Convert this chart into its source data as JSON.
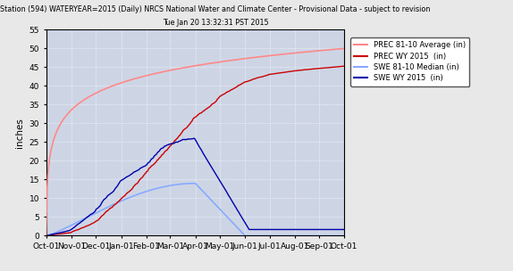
{
  "title_line1": "Station (594) WATERYEAR=2015 (Daily) NRCS National Water and Climate Center - Provisional Data - subject to revision",
  "title_line2": "Tue Jan 20 13:32:31 PST 2015",
  "ylabel": "inches",
  "plot_bg_color": "#cdd5e5",
  "fig_bg_color": "#e8e8e8",
  "months": [
    "Oct-01",
    "Nov-01",
    "Dec-01",
    "Jan-01",
    "Feb-01",
    "Mar-01",
    "Apr-01",
    "May-01",
    "Jun-01",
    "Jul-01",
    "Aug-01",
    "Sep-01",
    "Oct-01"
  ],
  "month_days": [
    0,
    31,
    61,
    92,
    123,
    152,
    183,
    213,
    244,
    274,
    305,
    335,
    365
  ],
  "ylim": [
    0,
    55
  ],
  "yticks": [
    0,
    5,
    10,
    15,
    20,
    25,
    30,
    35,
    40,
    45,
    50,
    55
  ],
  "prec_avg_color": "#ff8888",
  "prec_wy_color": "#cc0000",
  "swe_avg_color": "#88aaff",
  "swe_wy_color": "#0000aa",
  "legend_labels": [
    "PREC 81-10 Average (in)",
    "PREC WY 2015  (in)",
    "SWE 81-10 Median (in)",
    "SWE WY 2015  (in)"
  ]
}
